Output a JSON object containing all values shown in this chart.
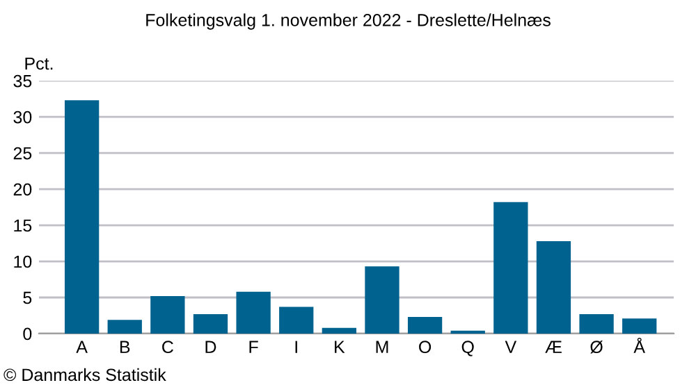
{
  "chart_data": {
    "type": "bar",
    "title": "Folketingsvalg 1. november 2022 - Dreslette/Helnæs",
    "ylabel": "Pct.",
    "categories": [
      "A",
      "B",
      "C",
      "D",
      "F",
      "I",
      "K",
      "M",
      "O",
      "Q",
      "V",
      "Æ",
      "Ø",
      "Å"
    ],
    "values": [
      32.3,
      1.9,
      5.2,
      2.7,
      5.8,
      3.7,
      0.8,
      9.3,
      2.3,
      0.4,
      18.2,
      12.8,
      2.7,
      2.1
    ],
    "color": "#00628f",
    "ylim": [
      0,
      35
    ],
    "yticks": [
      0,
      5,
      10,
      15,
      20,
      25,
      30,
      35
    ],
    "grid": "y",
    "annotations": [
      "© Danmarks Statistik"
    ]
  }
}
